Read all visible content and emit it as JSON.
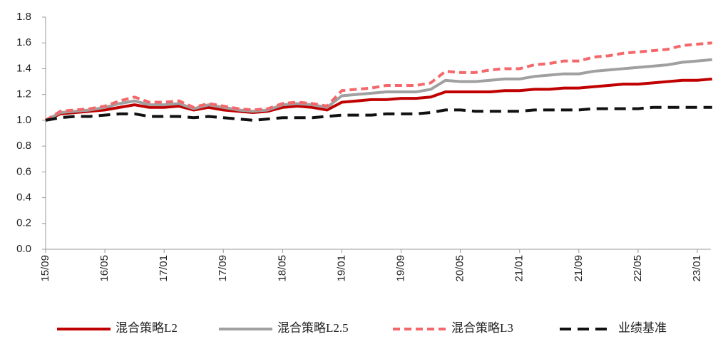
{
  "chart_data": {
    "type": "line",
    "x": [
      "15/09",
      "15/11",
      "16/01",
      "16/03",
      "16/05",
      "16/07",
      "16/09",
      "16/11",
      "17/01",
      "17/03",
      "17/05",
      "17/07",
      "17/09",
      "17/11",
      "18/01",
      "18/03",
      "18/05",
      "18/07",
      "18/09",
      "18/11",
      "19/01",
      "19/03",
      "19/05",
      "19/07",
      "19/09",
      "19/11",
      "20/01",
      "20/03",
      "20/05",
      "20/07",
      "20/09",
      "20/11",
      "21/01",
      "21/03",
      "21/05",
      "21/07",
      "21/09",
      "21/11",
      "22/01",
      "22/03",
      "22/05",
      "22/07",
      "22/09",
      "22/11",
      "23/01",
      "23/03"
    ],
    "xticks": [
      "15/09",
      "16/05",
      "17/01",
      "17/09",
      "18/05",
      "19/01",
      "19/09",
      "20/05",
      "21/01",
      "21/09",
      "22/05",
      "23/01"
    ],
    "ylim": [
      0,
      1.8
    ],
    "yticks": [
      {
        "value": 0,
        "label": "0.0"
      },
      0.2,
      0.4,
      0.6,
      0.8,
      {
        "value": 1,
        "label": "1.0"
      },
      1.2,
      1.4,
      1.6,
      1.8
    ],
    "series": [
      {
        "name": "混合策略L2",
        "color": "#c00000",
        "line_style": "solid",
        "values": [
          1.0,
          1.05,
          1.06,
          1.07,
          1.08,
          1.1,
          1.12,
          1.1,
          1.1,
          1.11,
          1.08,
          1.1,
          1.08,
          1.07,
          1.06,
          1.07,
          1.1,
          1.11,
          1.1,
          1.08,
          1.14,
          1.15,
          1.16,
          1.16,
          1.17,
          1.17,
          1.18,
          1.22,
          1.22,
          1.22,
          1.22,
          1.23,
          1.23,
          1.24,
          1.24,
          1.25,
          1.25,
          1.26,
          1.27,
          1.28,
          1.28,
          1.29,
          1.3,
          1.31,
          1.31,
          1.32
        ]
      },
      {
        "name": "混合策略L2.5",
        "color": "#a0a0a0",
        "line_style": "solid",
        "values": [
          1.0,
          1.06,
          1.07,
          1.08,
          1.1,
          1.13,
          1.15,
          1.12,
          1.12,
          1.13,
          1.09,
          1.12,
          1.1,
          1.08,
          1.07,
          1.08,
          1.12,
          1.13,
          1.12,
          1.1,
          1.19,
          1.2,
          1.21,
          1.22,
          1.22,
          1.22,
          1.24,
          1.31,
          1.3,
          1.3,
          1.31,
          1.32,
          1.32,
          1.34,
          1.35,
          1.36,
          1.36,
          1.38,
          1.39,
          1.4,
          1.41,
          1.42,
          1.43,
          1.45,
          1.46,
          1.47
        ]
      },
      {
        "name": "混合策略L3",
        "color": "#f4676a",
        "line_style": "dashed",
        "values": [
          1.0,
          1.07,
          1.08,
          1.09,
          1.11,
          1.15,
          1.18,
          1.14,
          1.14,
          1.15,
          1.1,
          1.13,
          1.11,
          1.09,
          1.08,
          1.09,
          1.13,
          1.14,
          1.13,
          1.11,
          1.23,
          1.24,
          1.25,
          1.27,
          1.27,
          1.27,
          1.29,
          1.38,
          1.37,
          1.37,
          1.39,
          1.4,
          1.4,
          1.43,
          1.44,
          1.46,
          1.46,
          1.49,
          1.5,
          1.52,
          1.53,
          1.54,
          1.55,
          1.58,
          1.59,
          1.6
        ]
      },
      {
        "name": "业绩基准",
        "color": "#111111",
        "line_style": "dashed",
        "values": [
          1.0,
          1.02,
          1.03,
          1.03,
          1.04,
          1.05,
          1.05,
          1.03,
          1.03,
          1.03,
          1.02,
          1.03,
          1.02,
          1.01,
          1.0,
          1.01,
          1.02,
          1.02,
          1.02,
          1.03,
          1.04,
          1.04,
          1.04,
          1.05,
          1.05,
          1.05,
          1.06,
          1.08,
          1.08,
          1.07,
          1.07,
          1.07,
          1.07,
          1.08,
          1.08,
          1.08,
          1.08,
          1.09,
          1.09,
          1.09,
          1.09,
          1.1,
          1.1,
          1.1,
          1.1,
          1.1
        ]
      }
    ]
  }
}
